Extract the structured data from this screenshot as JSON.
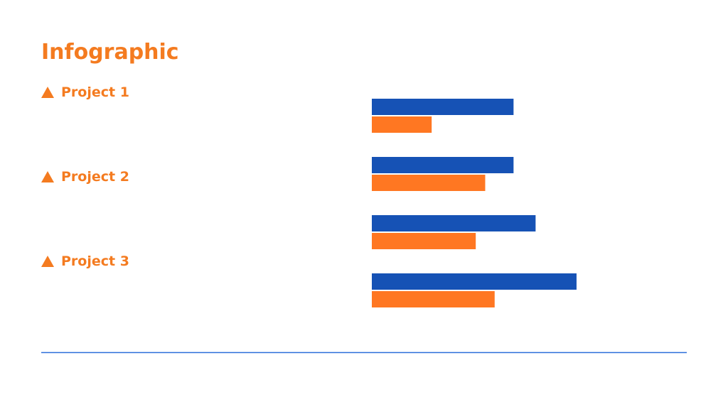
{
  "title": "Infographic",
  "items": [
    "Project 1",
    "Project 2",
    "Project 3"
  ],
  "chart_data": {
    "type": "hbar",
    "categories": [
      null,
      null,
      null,
      null
    ],
    "series": [
      {
        "color": "#1652b5",
        "values": [
          45,
          45,
          52,
          65
        ]
      },
      {
        "color": "#ff7722",
        "values": [
          19,
          36,
          33,
          39
        ]
      }
    ],
    "xlim": [
      0,
      100
    ]
  }
}
